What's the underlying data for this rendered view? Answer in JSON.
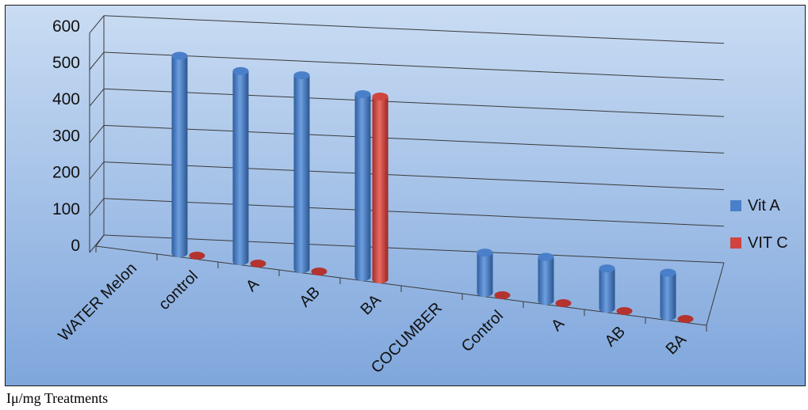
{
  "caption": "Iμ/mg Treatments",
  "colors": {
    "vit_a": "#4a7fc9",
    "vit_c": "#d0443f",
    "background_top": "#c9dcf3",
    "background_bottom": "#7fa6dc"
  },
  "chart_data": {
    "type": "bar",
    "title": "",
    "xlabel": "",
    "ylabel": "",
    "ylim": [
      0,
      600
    ],
    "yticks": [
      0,
      100,
      200,
      300,
      400,
      500,
      600
    ],
    "categories": [
      "WATER Melon",
      "control",
      "A",
      "AB",
      "BA",
      "COCUMBER",
      "Control",
      "A",
      "AB",
      "BA"
    ],
    "series": [
      {
        "name": "Vit A",
        "values": [
          null,
          540,
          520,
          530,
          500,
          null,
          110,
          120,
          110,
          120
        ]
      },
      {
        "name": "VIT C",
        "values": [
          null,
          0,
          0,
          0,
          500,
          null,
          0,
          0,
          0,
          0
        ]
      }
    ],
    "legend_position": "right",
    "grid": true
  }
}
